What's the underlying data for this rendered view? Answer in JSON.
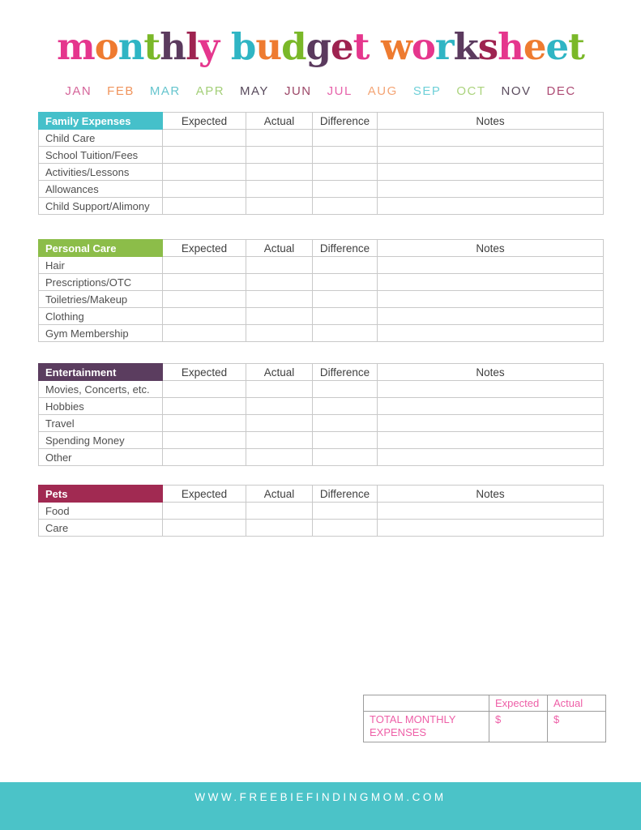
{
  "title": {
    "text": "monthly budget worksheet",
    "letters": [
      {
        "ch": "m",
        "color": "#e5368d"
      },
      {
        "ch": "o",
        "color": "#ee7b30"
      },
      {
        "ch": "n",
        "color": "#2fb5c4"
      },
      {
        "ch": "t",
        "color": "#7ab828"
      },
      {
        "ch": "h",
        "color": "#5b3a5e"
      },
      {
        "ch": "l",
        "color": "#9e2350"
      },
      {
        "ch": "y",
        "color": "#e5368d"
      },
      {
        "ch": " "
      },
      {
        "ch": "b",
        "color": "#2fb5c4"
      },
      {
        "ch": "u",
        "color": "#ee7b30"
      },
      {
        "ch": "d",
        "color": "#7ab828"
      },
      {
        "ch": "g",
        "color": "#5b3a5e"
      },
      {
        "ch": "e",
        "color": "#9e2350"
      },
      {
        "ch": "t",
        "color": "#e5368d"
      },
      {
        "ch": " "
      },
      {
        "ch": "w",
        "color": "#ee7b30"
      },
      {
        "ch": "o",
        "color": "#e5368d"
      },
      {
        "ch": "r",
        "color": "#2fb5c4"
      },
      {
        "ch": "k",
        "color": "#5b3a5e"
      },
      {
        "ch": "s",
        "color": "#9e2350"
      },
      {
        "ch": "h",
        "color": "#e5368d"
      },
      {
        "ch": "e",
        "color": "#ee7b30"
      },
      {
        "ch": "e",
        "color": "#2fb5c4"
      },
      {
        "ch": "t",
        "color": "#7ab828"
      }
    ]
  },
  "months": [
    {
      "label": "JAN",
      "color": "#d5659a"
    },
    {
      "label": "FEB",
      "color": "#f0945c"
    },
    {
      "label": "MAR",
      "color": "#66c5ce"
    },
    {
      "label": "APR",
      "color": "#a3cf78"
    },
    {
      "label": "MAY",
      "color": "#584a5c"
    },
    {
      "label": "JUN",
      "color": "#9c4767"
    },
    {
      "label": "JUL",
      "color": "#e763ab"
    },
    {
      "label": "AUG",
      "color": "#f4a474"
    },
    {
      "label": "SEP",
      "color": "#6fd0d8"
    },
    {
      "label": "OCT",
      "color": "#abd37d"
    },
    {
      "label": "NOV",
      "color": "#5b4c5e"
    },
    {
      "label": "DEC",
      "color": "#ad4b74"
    }
  ],
  "columns": [
    "Expected",
    "Actual",
    "Difference",
    "Notes"
  ],
  "sections": [
    {
      "name": "Family Expenses",
      "color": "#45c0ca",
      "rows": [
        "Child Care",
        "School Tuition/Fees",
        "Activities/Lessons",
        "Allowances",
        "Child Support/Alimony"
      ]
    },
    {
      "name": "Personal Care",
      "color": "#8cbd49",
      "rows": [
        "Hair",
        "Prescriptions/OTC",
        "Toiletries/Makeup",
        "Clothing",
        "Gym Membership"
      ]
    },
    {
      "name": "Entertainment",
      "color": "#5b3d5f",
      "rows": [
        "Movies, Concerts, etc.",
        "Hobbies",
        "Travel",
        "Spending Money",
        "Other"
      ]
    },
    {
      "name": "Pets",
      "color": "#a12a52",
      "rows": [
        "Food",
        "Care"
      ]
    }
  ],
  "totals": {
    "label": "TOTAL MONTHLY EXPENSES",
    "columns": [
      "Expected",
      "Actual"
    ],
    "values": [
      "$",
      "$"
    ],
    "accent_color": "#ee5fa7"
  },
  "footer": {
    "url": "WWW.FREEBIEFINDINGMOM.COM",
    "background": "#4bc3c8"
  }
}
